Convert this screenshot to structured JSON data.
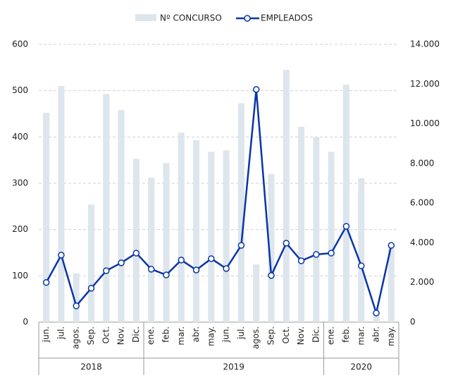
{
  "chart_data": {
    "type": "bar-line",
    "categories": [
      "jun.",
      "jul.",
      "agos.",
      "Sep.",
      "Oct.",
      "Nov.",
      "Dic.",
      "ene.",
      "feb.",
      "mar.",
      "abr.",
      "may.",
      "jun.",
      "jul.",
      "agos.",
      "Sep.",
      "Oct.",
      "Nov.",
      "Dic.",
      "ene.",
      "feb.",
      "mar.",
      "abr.",
      "may."
    ],
    "groups": [
      {
        "label": "2018",
        "size": 7
      },
      {
        "label": "2019",
        "size": 12
      },
      {
        "label": "2020",
        "size": 5
      }
    ],
    "series": [
      {
        "name": "Nº CONCURSO",
        "type": "bar",
        "color": "#dde5ed",
        "values": [
          452,
          510,
          105,
          254,
          493,
          458,
          353,
          312,
          344,
          409,
          393,
          368,
          371,
          473,
          125,
          320,
          545,
          422,
          399,
          368,
          513,
          311,
          20,
          160
        ]
      },
      {
        "name": "EMPLEADOS",
        "type": "line",
        "axis": "y2",
        "color": "#0a35a8",
        "values": [
          2000,
          3380,
          820,
          1710,
          2590,
          2990,
          3480,
          2670,
          2380,
          3130,
          2630,
          3200,
          2700,
          3870,
          11730,
          2350,
          3980,
          3090,
          3410,
          3480,
          4830,
          2840,
          460,
          3870
        ]
      }
    ],
    "ylim": [
      0,
      600
    ],
    "yticks": [
      0,
      100,
      200,
      300,
      400,
      500,
      600
    ],
    "y2lim": [
      0,
      14000
    ],
    "y2ticks": [
      0,
      {
        "value": 2000,
        "label": "2.000"
      },
      {
        "value": 4000,
        "label": "4.000"
      },
      {
        "value": 6000,
        "label": "6.000"
      },
      {
        "value": 8000,
        "label": "8.000"
      },
      {
        "value": 10000,
        "label": "10.000"
      },
      {
        "value": 12000,
        "label": "12.000"
      },
      {
        "value": 14000,
        "label": "14.000"
      }
    ],
    "grid": true,
    "legend": "top"
  }
}
